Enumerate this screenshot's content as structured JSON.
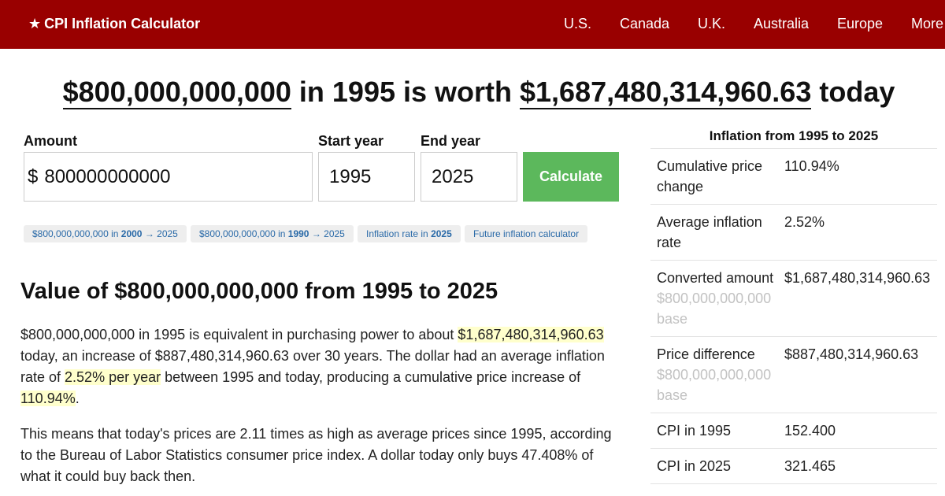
{
  "header": {
    "brand_star": "★",
    "brand": "CPI Inflation Calculator",
    "nav": [
      "U.S.",
      "Canada",
      "U.K.",
      "Australia",
      "Europe",
      "More"
    ]
  },
  "headline": {
    "amount": "$800,000,000,000",
    "mid": " in 1995 is worth ",
    "result": "$1,687,480,314,960.63",
    "tail": " today"
  },
  "form": {
    "amount_label": "Amount",
    "currency_symbol": "$",
    "amount_value": "800000000000",
    "start_label": "Start year",
    "start_value": "1995",
    "end_label": "End year",
    "end_value": "2025",
    "calculate_label": "Calculate"
  },
  "chips": [
    {
      "pre": "$800,000,000,000 in ",
      "bold": "2000",
      "post": " → 2025"
    },
    {
      "pre": "$800,000,000,000 in ",
      "bold": "1990",
      "post": " → 2025"
    },
    {
      "pre": "Inflation rate in ",
      "bold": "2025",
      "post": ""
    },
    {
      "pre": "Future inflation calculator",
      "bold": "",
      "post": ""
    }
  ],
  "section": {
    "title": "Value of $800,000,000,000 from 1995 to 2025",
    "p1": {
      "a": "$800,000,000,000 in 1995 is equivalent in purchasing power to about ",
      "hl1": "$1,687,480,314,960.63",
      "b": " today, an increase of $887,480,314,960.63 over 30 years. The dollar had an average inflation rate of ",
      "hl2": "2.52% per year",
      "c": " between 1995 and today, producing a cumulative price increase of ",
      "hl3": "110.94%",
      "d": "."
    },
    "p2": "This means that today's prices are 2.11 times as high as average prices since 1995, according to the Bureau of Labor Statistics consumer price index. A dollar today only buys 47.408% of what it could buy back then."
  },
  "sidebar": {
    "title": "Inflation from 1995 to 2025",
    "rows": [
      {
        "label": "Cumulative price change",
        "value": "110.94%",
        "sub": ""
      },
      {
        "label": "Average inflation rate",
        "value": "2.52%",
        "sub": ""
      },
      {
        "label": "Converted amount",
        "value": "$1,687,480,314,960.63",
        "sub": "$800,000,000,000 base"
      },
      {
        "label": "Price difference",
        "value": "$887,480,314,960.63",
        "sub": "$800,000,000,000 base"
      },
      {
        "label": "CPI in 1995",
        "value": "152.400",
        "sub": ""
      },
      {
        "label": "CPI in 2025",
        "value": "321.465",
        "sub": ""
      }
    ]
  },
  "colors": {
    "header_bg": "#990000",
    "calculate_bg": "#5cb85c",
    "link": "#2a6aa8",
    "highlight": "#ffffcc"
  }
}
